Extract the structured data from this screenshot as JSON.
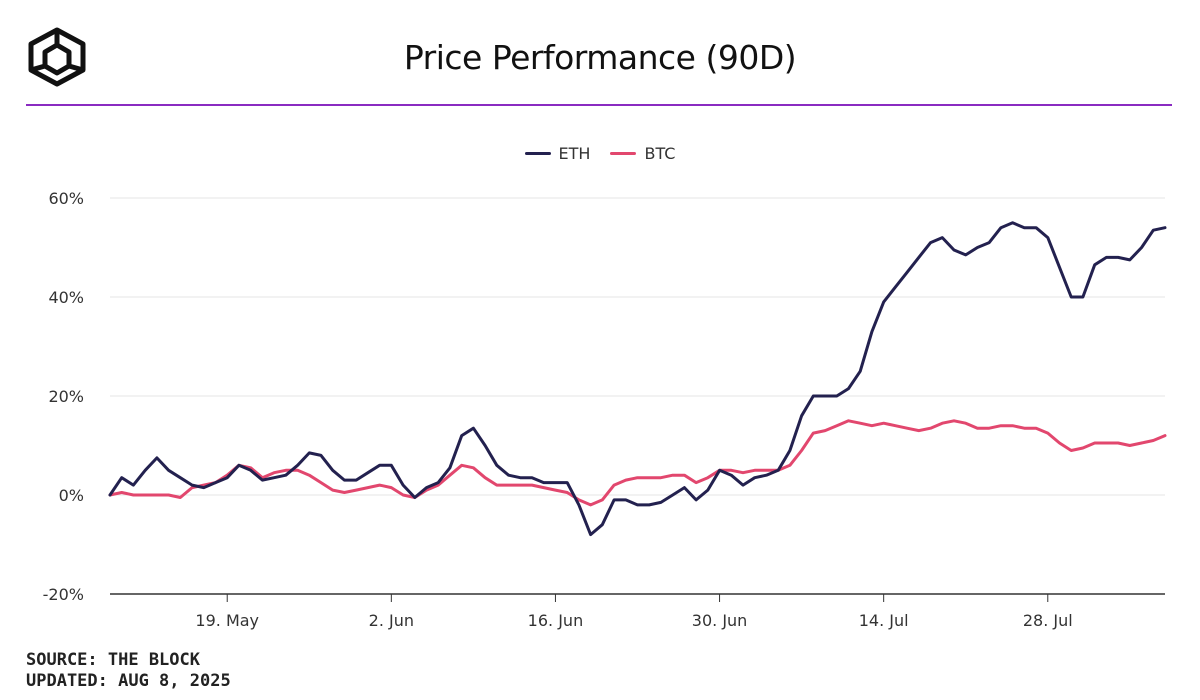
{
  "header": {
    "title": "Price Performance (90D)"
  },
  "footer": {
    "source": "SOURCE: THE BLOCK",
    "updated": "UPDATED: AUG 8, 2025"
  },
  "colors": {
    "eth": "#23214f",
    "btc": "#e2476e",
    "rule": "#8a2bc1",
    "grid": "#e6e6e6"
  },
  "chart_data": {
    "type": "line",
    "title": "Price Performance (90D)",
    "xlabel": "",
    "ylabel": "",
    "ylim": [
      -20,
      60
    ],
    "yticks": [
      -20,
      0,
      20,
      40,
      60
    ],
    "ytick_labels": [
      "-20%",
      "0%",
      "20%",
      "40%",
      "60%"
    ],
    "xticks": [
      {
        "day": 10,
        "label": "19. May"
      },
      {
        "day": 24,
        "label": "2. Jun"
      },
      {
        "day": 38,
        "label": "16. Jun"
      },
      {
        "day": 52,
        "label": "30. Jun"
      },
      {
        "day": 66,
        "label": "14. Jul"
      },
      {
        "day": 80,
        "label": "28. Jul"
      }
    ],
    "x_start_day": 0,
    "x_end_day": 90,
    "legend_position": "top-center",
    "grid": true,
    "series": [
      {
        "name": "ETH",
        "color": "#23214f",
        "values": [
          0,
          3.5,
          2,
          5,
          7.5,
          5,
          3.5,
          2,
          1.5,
          2.5,
          3.5,
          6,
          5,
          3,
          3.5,
          4,
          6,
          8.5,
          8,
          5,
          3,
          3,
          4.5,
          6,
          6,
          2,
          -0.5,
          1.5,
          2.5,
          5.5,
          12,
          13.5,
          10,
          6,
          4,
          3.5,
          3.5,
          2.5,
          2.5,
          2.5,
          -2,
          -8,
          -6,
          -1,
          -1,
          -2,
          -2,
          -1.5,
          0,
          1.5,
          -1,
          1,
          5,
          4,
          2,
          3.5,
          4,
          5,
          9,
          16,
          20,
          20,
          20,
          21.5,
          25,
          33,
          39,
          42,
          45,
          48,
          51,
          52,
          49.5,
          48.5,
          50,
          51,
          54,
          55,
          54,
          54,
          52,
          46,
          40,
          40,
          46.5,
          48,
          48,
          47.5,
          50,
          53.5,
          54
        ]
      },
      {
        "name": "BTC",
        "color": "#e2476e",
        "values": [
          0,
          0.5,
          0,
          0,
          0,
          0,
          -0.5,
          1.5,
          2,
          2.5,
          4,
          6,
          5.5,
          3.5,
          4.5,
          5,
          5,
          4,
          2.5,
          1,
          0.5,
          1,
          1.5,
          2,
          1.5,
          0,
          -0.5,
          1,
          2,
          4,
          6,
          5.5,
          3.5,
          2,
          2,
          2,
          2,
          1.5,
          1,
          0.5,
          -1,
          -2,
          -1,
          2,
          3,
          3.5,
          3.5,
          3.5,
          4,
          4,
          2.5,
          3.5,
          5,
          5,
          4.5,
          5,
          5,
          5,
          6,
          9,
          12.5,
          13,
          14,
          15,
          14.5,
          14,
          14.5,
          14,
          13.5,
          13,
          13.5,
          14.5,
          15,
          14.5,
          13.5,
          13.5,
          14,
          14,
          13.5,
          13.5,
          12.5,
          10.5,
          9,
          9.5,
          10.5,
          10.5,
          10.5,
          10,
          10.5,
          11,
          12
        ]
      }
    ]
  }
}
